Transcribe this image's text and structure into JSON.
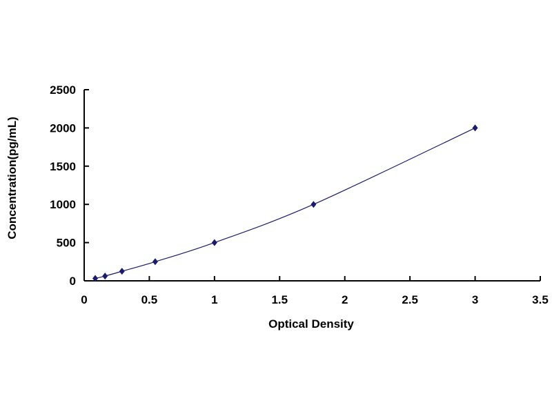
{
  "chart_data": {
    "type": "scatter",
    "title": "",
    "xlabel": "Optical Density",
    "ylabel": "Concentration(pg/mL)",
    "xlim": [
      0,
      3.5
    ],
    "ylim": [
      0,
      2500
    ],
    "xticks": [
      "0",
      "0.5",
      "1",
      "1.5",
      "2",
      "2.5",
      "3",
      "3.5"
    ],
    "yticks": [
      "0",
      "500",
      "1000",
      "1500",
      "2000",
      "2500"
    ],
    "grid": false,
    "fit_line": "smooth curve through points",
    "colors": {
      "points": "#1a1a6e",
      "line": "#1a1a6e"
    },
    "series": [
      {
        "x": [
          0.085,
          0.16,
          0.29,
          0.545,
          1.0,
          1.76,
          3.0
        ],
        "y": [
          31.25,
          62.5,
          125,
          250,
          500,
          1000,
          2000
        ]
      }
    ]
  }
}
